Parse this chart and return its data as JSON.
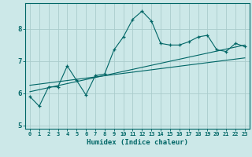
{
  "title": "",
  "xlabel": "Humidex (Indice chaleur)",
  "bg_color": "#cce8e8",
  "grid_color": "#aacccc",
  "line_color": "#006666",
  "x_data": [
    0,
    1,
    2,
    3,
    4,
    5,
    6,
    7,
    8,
    9,
    10,
    11,
    12,
    13,
    14,
    15,
    16,
    17,
    18,
    19,
    20,
    21,
    22,
    23
  ],
  "y_main": [
    5.9,
    5.6,
    6.2,
    6.2,
    6.85,
    6.4,
    5.95,
    6.55,
    6.6,
    7.35,
    7.75,
    8.3,
    8.55,
    8.25,
    7.55,
    7.5,
    7.5,
    7.6,
    7.75,
    7.8,
    7.35,
    7.3,
    7.55,
    7.45
  ],
  "trend1_x": [
    0,
    23
  ],
  "trend1_y": [
    6.05,
    7.5
  ],
  "trend2_x": [
    0,
    23
  ],
  "trend2_y": [
    6.25,
    7.1
  ],
  "ylim": [
    4.9,
    8.8
  ],
  "xlim": [
    -0.5,
    23.5
  ],
  "yticks": [
    5,
    6,
    7,
    8
  ],
  "xtick_fontsize": 5,
  "ytick_fontsize": 6.5,
  "xlabel_fontsize": 6.5,
  "linewidth": 0.8,
  "marker_size": 3.5
}
